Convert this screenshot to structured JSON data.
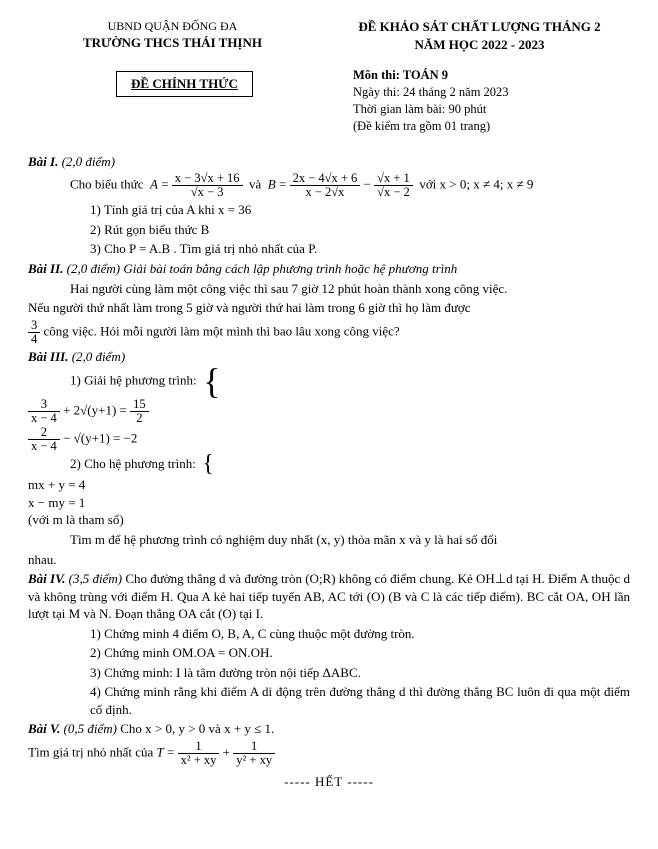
{
  "header": {
    "district": "UBND QUẬN ĐỐNG ĐA",
    "school": "TRƯỜNG THCS THÁI THỊNH",
    "exam_title": "ĐỀ KHẢO SÁT CHẤT LƯỢNG THÁNG 2",
    "year": "NĂM HỌC 2022 - 2023",
    "official": "ĐỀ CHÍNH THỨC",
    "subject": "Môn thi: TOÁN 9",
    "date": "Ngày thi: 24 tháng 2 năm 2023",
    "duration": "Thời gian làm bài: 90 phút",
    "pages": "(Đề kiểm tra gồm 01 trang)"
  },
  "b1": {
    "title": "Bài I.",
    "pts": "(2,0 điểm)",
    "intro": "Cho biểu thức",
    "A_num": "x − 3√x + 16",
    "A_den": "√x − 3",
    "and": "và",
    "B1_num": "2x − 4√x + 6",
    "B1_den": "x − 2√x",
    "B2_num": "√x + 1",
    "B2_den": "√x − 2",
    "cond": "với x > 0; x ≠ 4; x ≠ 9",
    "q1": "1) Tính giá trị của A khi x = 36",
    "q2": "2) Rút gọn biểu thức B",
    "q3": "3) Cho P = A.B . Tìm giá trị nhỏ nhất của P."
  },
  "b2": {
    "title": "Bài II.",
    "pts": "(2,0 điểm) Giải bài toán bằng cách lập phương trình hoặc hệ phương trình",
    "l1": "Hai người cùng làm một công việc thì sau 7 giờ 12 phút hoàn thành xong công việc.",
    "l2": "Nếu người thứ nhất làm trong 5 giờ và người thứ hai làm trong 6 giờ thì họ làm được",
    "l3a": "công việc. Hỏi mỗi người làm một mình thì bao lâu xong công việc?"
  },
  "b3": {
    "title": "Bài III.",
    "pts": "(2,0 điểm)",
    "q1": "1) Giải hệ phương trình:",
    "e1a_l": "3",
    "e1a_d": "x − 4",
    "e1a_r": "+ 2√(y+1) =",
    "e1a_rhs_n": "15",
    "e1a_rhs_d": "2",
    "e1b_l": "2",
    "e1b_d": "x − 4",
    "e1b_r": "− √(y+1) = −2",
    "q2": "2) Cho hệ phương trình:",
    "e2a": "mx + y = 4",
    "e2b": "x − my = 1",
    "e2c": "(với m là tham số)",
    "l3": "Tìm m để hệ phương trình có nghiệm duy nhất (x, y) thỏa mãn x và y là hai số đối",
    "l4": "nhau."
  },
  "b4": {
    "title": "Bài IV.",
    "pts": "(3,5 điểm)",
    "intro": "Cho đường thẳng d và đường tròn (O;R) không có điểm chung. Kẻ OH⊥d tại H. Điểm A thuộc d và không trùng với điểm H. Qua A kẻ hai tiếp tuyến AB, AC tới (O) (B và C là các tiếp điểm). BC cắt OA, OH lần lượt tại M và N. Đoạn thẳng OA cắt (O) tại I.",
    "q1": "1) Chứng minh 4 điểm O, B, A, C cùng thuộc một đường tròn.",
    "q2": "2) Chứng minh OM.OA = ON.OH.",
    "q3": "3) Chứng minh: I là tâm đường tròn nội tiếp ΔABC.",
    "q4": "4) Chứng minh rằng khi điểm A di động trên đường thẳng d thì đường thẳng BC luôn đi qua một điểm cố định."
  },
  "b5": {
    "title": "Bài V.",
    "pts": "(0,5 điểm)",
    "cond": "Cho x > 0, y > 0 và x + y ≤ 1.",
    "q": "Tìm giá trị nhỏ nhất của",
    "T1d": "x² + xy",
    "T2d": "y² + xy"
  },
  "end": "----- HẾT -----"
}
